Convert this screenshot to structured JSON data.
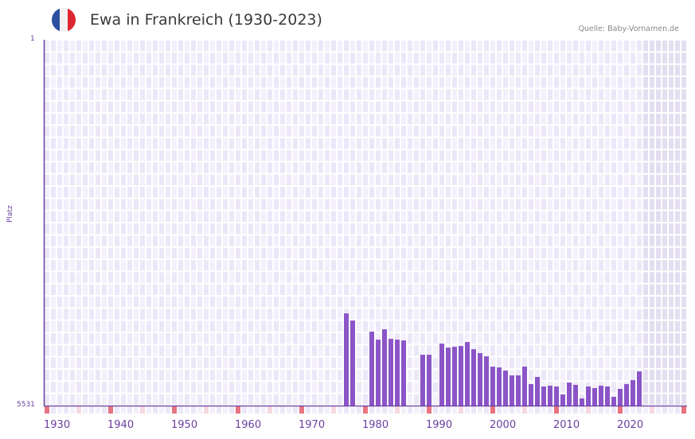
{
  "header": {
    "title": "Ewa in Frankreich (1930-2023)",
    "source": "Quelle: Baby-Vornamen.de",
    "flag_colors": [
      "#2c4fa0",
      "#f2f2f2",
      "#e0262f"
    ]
  },
  "colors": {
    "bar": "#8b55c7",
    "axis": "#6a3fa0",
    "grid_bg_a": "#f3f0fc",
    "grid_bg_b": "#ece7f8",
    "future_bg": "#e3def0",
    "decade_marker": "#e57480",
    "midpoint_marker": "#f5d9e1"
  },
  "chart_data": {
    "type": "bar",
    "title": "Ewa in Frankreich (1930-2023)",
    "xlabel": "",
    "ylabel": "Platz",
    "y_inverted": true,
    "ylim": [
      1,
      5531
    ],
    "xlim": [
      1930,
      2030
    ],
    "x_ticks": [
      "1930",
      "1940",
      "1950",
      "1960",
      "1970",
      "1980",
      "1990",
      "2000",
      "2010",
      "2020"
    ],
    "y_ticks": [
      "1",
      "5531"
    ],
    "grid": true,
    "shaded_future_from": 2024,
    "categories": [
      1977,
      1978,
      1981,
      1982,
      1983,
      1984,
      1985,
      1986,
      1989,
      1990,
      1992,
      1993,
      1994,
      1995,
      1996,
      1997,
      1998,
      1999,
      2000,
      2001,
      2002,
      2003,
      2004,
      2005,
      2006,
      2007,
      2008,
      2009,
      2010,
      2011,
      2012,
      2013,
      2014,
      2015,
      2016,
      2017,
      2018,
      2019,
      2020,
      2021,
      2022,
      2023
    ],
    "values": [
      4137,
      4245,
      4414,
      4534,
      4378,
      4522,
      4534,
      4546,
      4762,
      4762,
      4594,
      4654,
      4642,
      4630,
      4570,
      4678,
      4738,
      4786,
      4942,
      4954,
      5002,
      5074,
      5074,
      4942,
      5206,
      5098,
      5242,
      5230,
      5242,
      5362,
      5182,
      5218,
      5422,
      5242,
      5266,
      5230,
      5242,
      5398,
      5278,
      5206,
      5146,
      5014
    ]
  },
  "axis": {
    "y_top_label": "1",
    "y_bottom_label": "5531",
    "y_title": "Platz"
  }
}
